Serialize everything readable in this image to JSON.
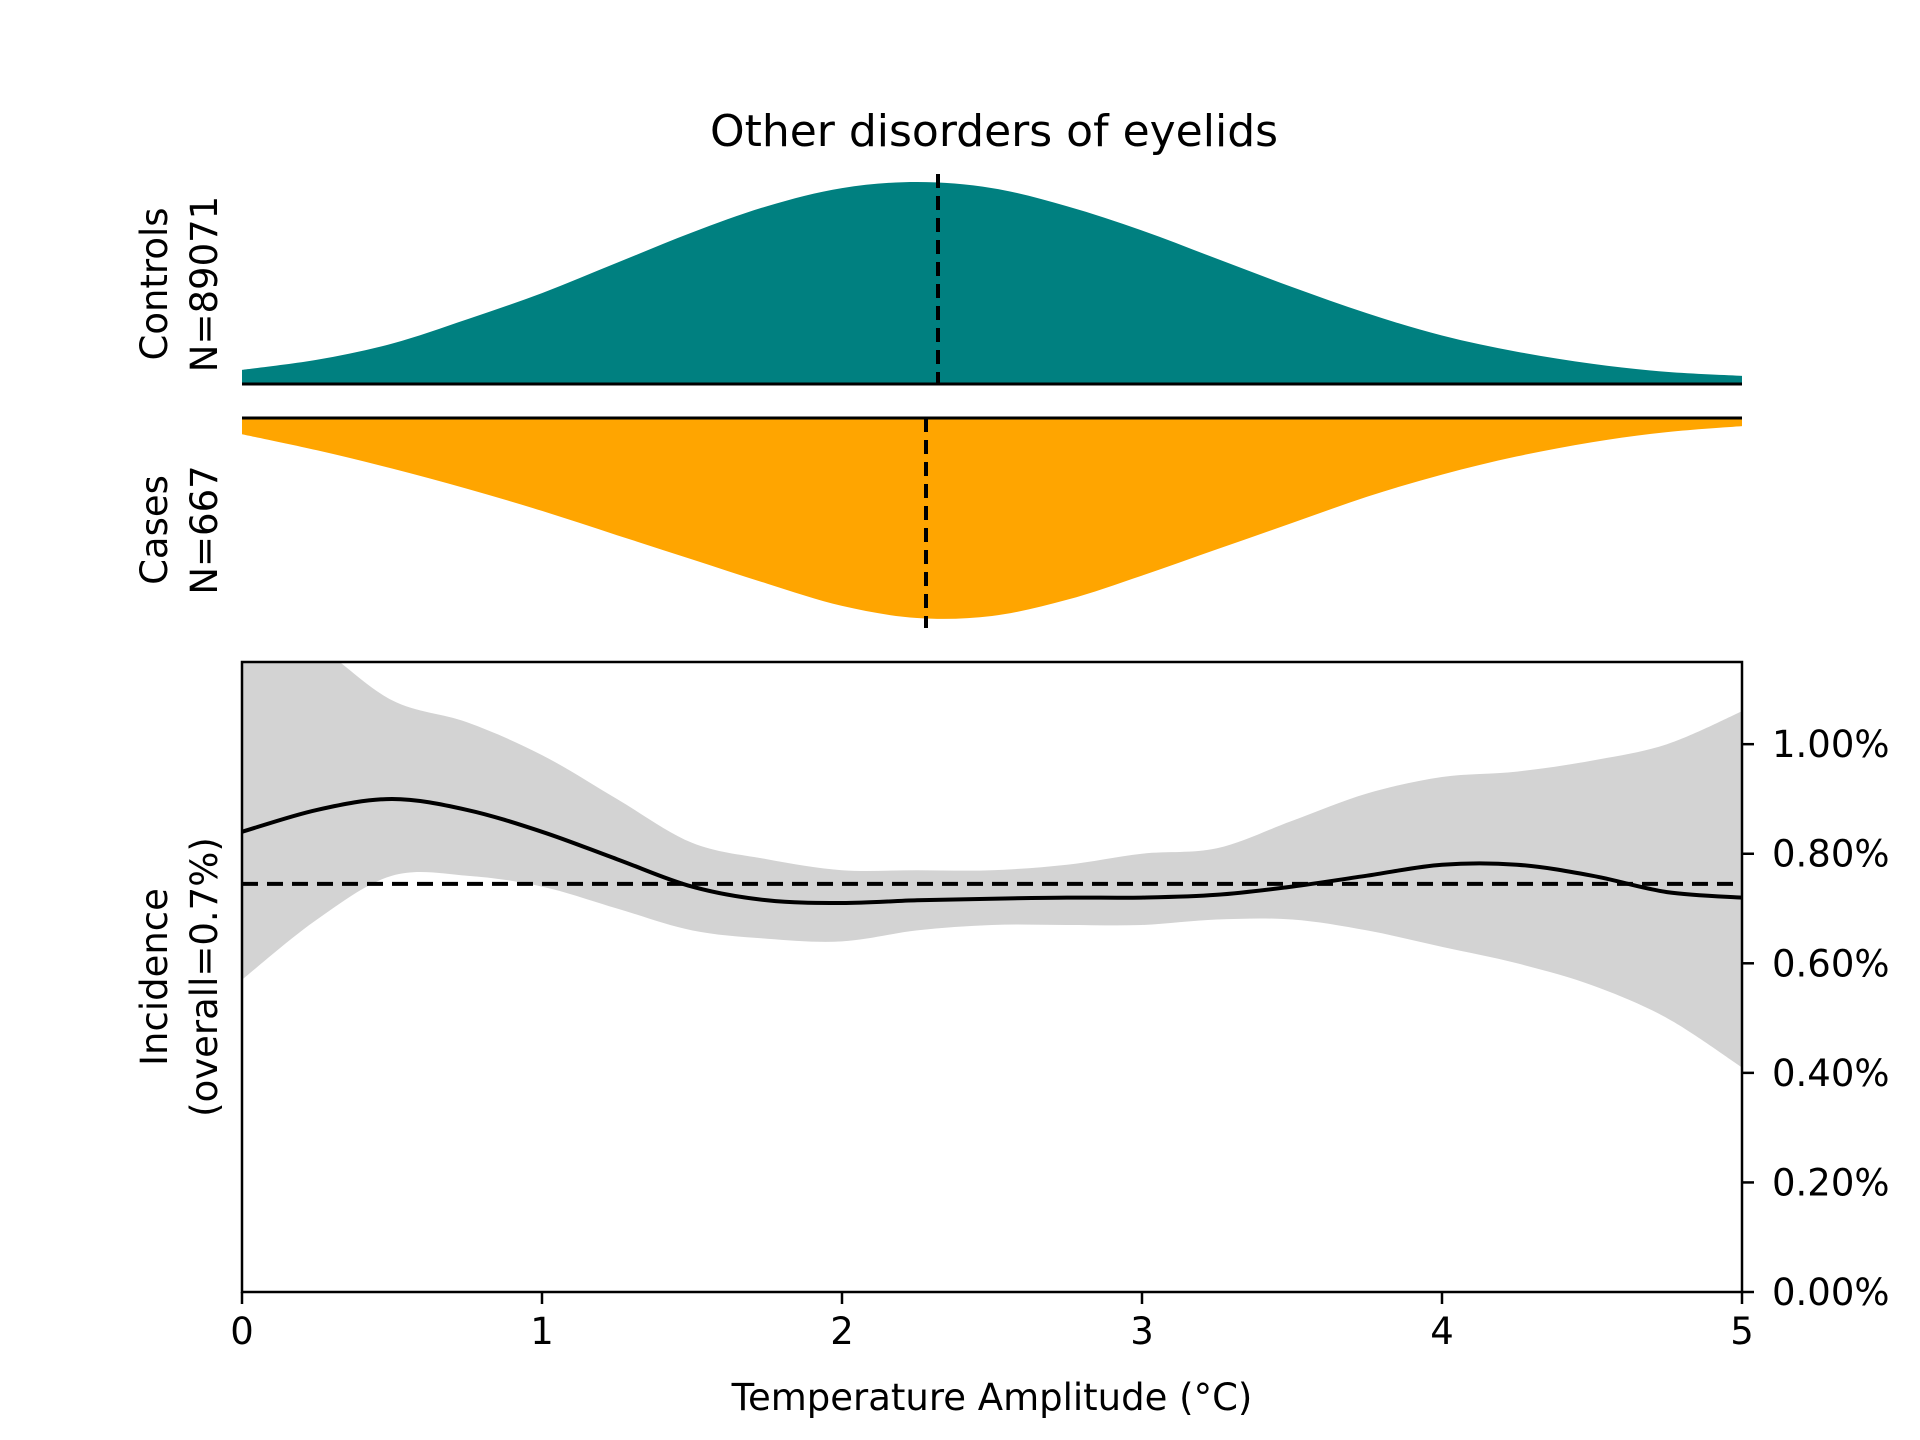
{
  "chart_data": {
    "type": "area",
    "title": "Other disorders of eyelids",
    "xlabel": "Temperature Amplitude (°C)",
    "xlim": [
      0,
      5
    ],
    "x_ticks": [
      "0",
      "1",
      "2",
      "3",
      "4",
      "5"
    ],
    "x_tick_values": [
      0,
      1,
      2,
      3,
      4,
      5
    ],
    "colors": {
      "controls": "#008080",
      "cases": "#ffa500",
      "ci_band": "#d3d3d3",
      "line": "#000000"
    },
    "controls": {
      "label_line1": "Controls",
      "label_line2": "N=89071",
      "median": 2.32,
      "x": [
        0,
        0.25,
        0.5,
        0.75,
        1,
        1.25,
        1.5,
        1.75,
        2,
        2.25,
        2.5,
        2.75,
        3,
        3.25,
        3.5,
        3.75,
        4,
        4.25,
        4.5,
        4.75,
        5
      ],
      "density": [
        0.07,
        0.12,
        0.2,
        0.32,
        0.45,
        0.6,
        0.75,
        0.88,
        0.97,
        1.0,
        0.97,
        0.88,
        0.76,
        0.62,
        0.48,
        0.35,
        0.24,
        0.16,
        0.1,
        0.06,
        0.04
      ]
    },
    "cases": {
      "label_line1": "Cases",
      "label_line2": "N=667",
      "median": 2.28,
      "x": [
        0,
        0.25,
        0.5,
        0.75,
        1,
        1.25,
        1.5,
        1.75,
        2,
        2.25,
        2.5,
        2.75,
        3,
        3.25,
        3.5,
        3.75,
        4,
        4.25,
        4.5,
        4.75,
        5
      ],
      "density": [
        0.08,
        0.16,
        0.25,
        0.35,
        0.46,
        0.58,
        0.7,
        0.82,
        0.93,
        0.99,
        0.98,
        0.9,
        0.78,
        0.65,
        0.52,
        0.39,
        0.28,
        0.19,
        0.12,
        0.07,
        0.04
      ]
    },
    "incidence": {
      "ylabel_line1": "Incidence",
      "ylabel_line2": "(overall=0.7%)",
      "ylim": [
        0,
        1.15
      ],
      "y_ticks": [
        "0.00%",
        "0.20%",
        "0.40%",
        "0.60%",
        "0.80%",
        "1.00%"
      ],
      "y_tick_values": [
        0,
        0.2,
        0.4,
        0.6,
        0.8,
        1.0
      ],
      "overall": 0.745,
      "x": [
        0,
        0.25,
        0.5,
        0.75,
        1,
        1.25,
        1.5,
        1.75,
        2,
        2.25,
        2.5,
        2.75,
        3,
        3.25,
        3.5,
        3.75,
        4,
        4.25,
        4.5,
        4.75,
        5
      ],
      "mean": [
        0.84,
        0.88,
        0.9,
        0.88,
        0.84,
        0.79,
        0.74,
        0.715,
        0.71,
        0.715,
        0.718,
        0.72,
        0.72,
        0.725,
        0.74,
        0.76,
        0.78,
        0.78,
        0.76,
        0.73,
        0.72
      ],
      "upper": [
        1.25,
        1.18,
        1.08,
        1.04,
        0.98,
        0.9,
        0.82,
        0.79,
        0.77,
        0.77,
        0.77,
        0.78,
        0.8,
        0.81,
        0.86,
        0.91,
        0.94,
        0.95,
        0.97,
        1.0,
        1.06
      ],
      "lower": [
        0.57,
        0.68,
        0.76,
        0.76,
        0.74,
        0.7,
        0.66,
        0.645,
        0.64,
        0.66,
        0.67,
        0.67,
        0.67,
        0.68,
        0.68,
        0.66,
        0.63,
        0.6,
        0.56,
        0.5,
        0.41
      ]
    }
  }
}
